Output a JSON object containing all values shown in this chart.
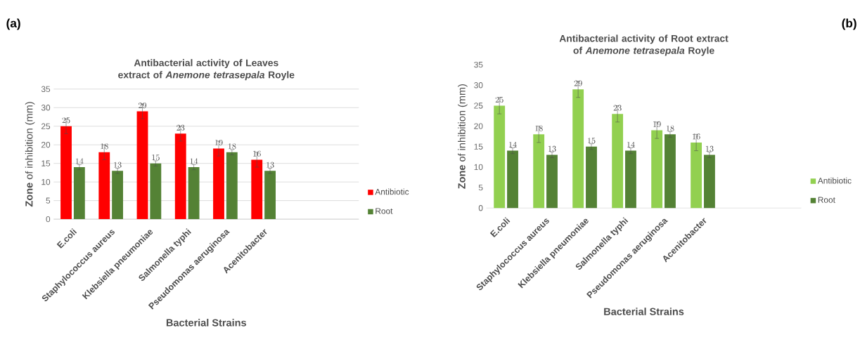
{
  "chart_data": [
    {
      "type": "bar",
      "title": "Antibacterial activity of Leaves extract  of *Anemone tetrasepala* Royle",
      "xlabel": "Bacterial Strains",
      "ylabel": "**Zone** of inhibition (mm)",
      "categories": [
        "E.coli",
        "Staphylococcus aureus",
        "Klebsiella pneumoniae",
        "Salmonella typhi",
        "Pseudomonas aeruginosa",
        "Acenitobacter",
        null,
        null
      ],
      "series": [
        {
          "name": "Antibiotic",
          "color": "#ff0000",
          "values": [
            25,
            18,
            29,
            23,
            19,
            16,
            null,
            null
          ],
          "errors": [
            2,
            2,
            2,
            2,
            2,
            2,
            null,
            null
          ]
        },
        {
          "name": "Root",
          "color": "#548235",
          "values": [
            14,
            13,
            15,
            14,
            18,
            13,
            null,
            null
          ],
          "errors": [
            0.7,
            0.7,
            0.7,
            0.7,
            0.7,
            0.7,
            null,
            null
          ]
        }
      ],
      "ylim": [
        0,
        35
      ],
      "yticks": [
        0,
        5,
        10,
        15,
        20,
        25,
        30,
        35
      ],
      "grid": "y",
      "legend": "right",
      "data_labels": true,
      "annotations": [
        "(a)"
      ]
    },
    {
      "type": "bar",
      "title": "Antibacterial activity of Root extract  of *Anemone tetrasepala* Royle",
      "xlabel": "Bacterial Strains",
      "ylabel": "**Zone** of inhibition (mm)",
      "categories": [
        "E.coli",
        "Staphylococcus aureus",
        "Klebsiella pneumoniae",
        "Salmonella typhi",
        "Pseudomonas aeruginosa",
        "Acenitobacter",
        null,
        null
      ],
      "series": [
        {
          "name": "Antibiotic",
          "color": "#92d050",
          "values": [
            25,
            18,
            29,
            23,
            19,
            16,
            null,
            null
          ],
          "errors": [
            2,
            2,
            2,
            2,
            2,
            2,
            null,
            null
          ]
        },
        {
          "name": "Root",
          "color": "#548235",
          "values": [
            14,
            13,
            15,
            14,
            18,
            13,
            null,
            null
          ],
          "errors": [
            0.7,
            0.7,
            0.7,
            0.7,
            0.7,
            0.7,
            null,
            null
          ]
        }
      ],
      "ylim": [
        0,
        35
      ],
      "yticks": [
        0,
        5,
        10,
        15,
        20,
        25,
        30,
        35
      ],
      "grid": false,
      "legend": "right",
      "data_labels": true,
      "annotations": [
        "(b)"
      ]
    }
  ]
}
